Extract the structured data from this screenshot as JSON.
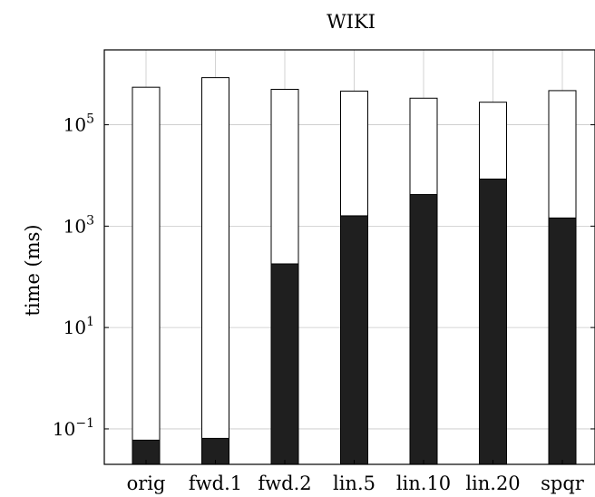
{
  "chart_data": {
    "type": "bar",
    "stacked": true,
    "title": "WIKI",
    "xlabel": "",
    "ylabel": "time (ms)",
    "y_scale": "log",
    "ylim": [
      0.02,
      3000000
    ],
    "yticks": [
      0.1,
      10,
      1000,
      100000
    ],
    "ytick_labels": [
      {
        "base": "10",
        "exp": "−1"
      },
      {
        "base": "10",
        "exp": "1"
      },
      {
        "base": "10",
        "exp": "3"
      },
      {
        "base": "10",
        "exp": "5"
      }
    ],
    "grid": true,
    "categories": [
      "orig",
      "fwd.1",
      "fwd.2",
      "lin.5",
      "lin.10",
      "lin.20",
      "spqr"
    ],
    "series": [
      {
        "color": "#1f1f1f",
        "values": [
          0.06,
          0.065,
          180,
          1600,
          4200,
          8500,
          1450
        ]
      },
      {
        "color": "#ffffff",
        "values": [
          550000,
          850000,
          500000,
          460000,
          330000,
          270000,
          470000
        ]
      }
    ]
  }
}
